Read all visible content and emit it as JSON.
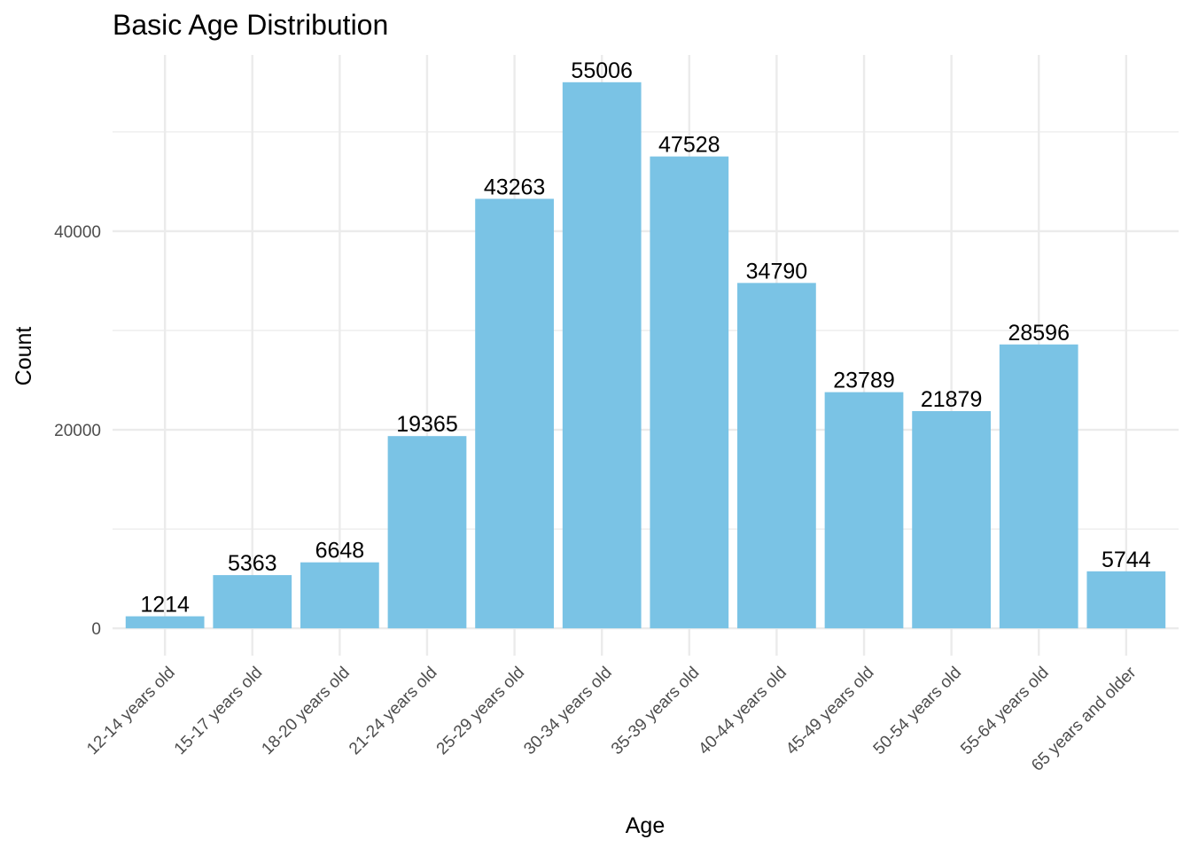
{
  "chart_data": {
    "type": "bar",
    "title": "Basic Age Distribution",
    "xlabel": "Age",
    "ylabel": "Count",
    "categories": [
      "12-14 years old",
      "15-17 years old",
      "18-20 years old",
      "21-24 years old",
      "25-29 years old",
      "30-34 years old",
      "35-39 years old",
      "40-44 years old",
      "45-49 years old",
      "50-54 years old",
      "55-64 years old",
      "65 years and older"
    ],
    "values": [
      1214,
      5363,
      6648,
      19365,
      43263,
      55006,
      47528,
      34790,
      23789,
      21879,
      28596,
      5744
    ],
    "y_ticks": [
      0,
      20000,
      40000
    ],
    "y_minor_ticks": [
      10000,
      30000,
      50000
    ],
    "ylim": [
      -2750,
      57756
    ],
    "grid": true,
    "legend": "none",
    "bar_color": "#7AC3E5",
    "grid_color": "#EBEBEB"
  }
}
